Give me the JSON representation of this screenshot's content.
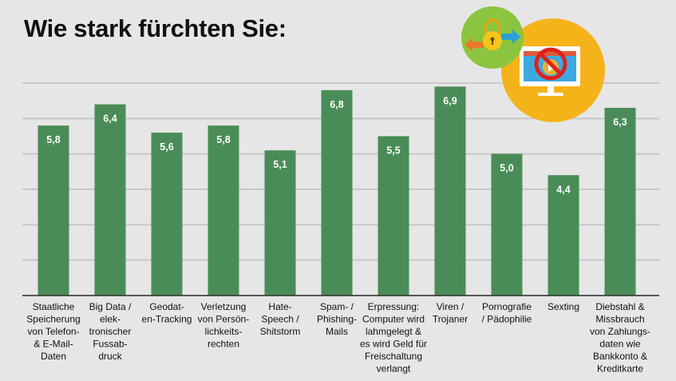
{
  "chart_data": {
    "type": "bar",
    "title": "Wie stark fürchten Sie:",
    "categories": [
      [
        "Staatliche",
        "Speicherung",
        "von Telefon-",
        "& E-Mail-",
        "Daten"
      ],
      [
        "Big Data /",
        "elek-",
        "tronischer",
        "Fussab-",
        "druck"
      ],
      [
        "Geodat-",
        "en-Tracking"
      ],
      [
        "Verletzung",
        "von Persön-",
        "lichkeits-",
        "rechten"
      ],
      [
        "Hate-",
        "Speech /",
        "Shitstorm"
      ],
      [
        "Spam- /",
        "Phishing-",
        "Mails"
      ],
      [
        "Erpressung:",
        "Computer wird",
        "lahmgelegt &",
        "es wird Geld für",
        "Freischaltung",
        "verlangt"
      ],
      [
        "Viren /",
        "Trojaner"
      ],
      [
        "Pornografie",
        "/ Pädophilie"
      ],
      [
        "Sexting"
      ],
      [
        "Diebstahl &",
        "Missbrauch",
        "von Zahlungs-",
        "daten wie",
        "Bankkonto &",
        "Kreditkarte"
      ]
    ],
    "values": [
      5.8,
      6.4,
      5.6,
      5.8,
      5.1,
      6.8,
      5.5,
      6.9,
      5.0,
      4.4,
      6.3
    ],
    "value_labels": [
      "5,8",
      "6,4",
      "5,6",
      "5,8",
      "5,1",
      "6,8",
      "5,5",
      "6,9",
      "5,0",
      "4,4",
      "6,3"
    ],
    "ylim": [
      1,
      7
    ],
    "grid": true,
    "xlabel": "",
    "ylabel": ""
  },
  "colors": {
    "background": "#e6e6e6",
    "bar": "#4a8c57",
    "value_label": "#ffffff",
    "gridline": "#c8c8c8",
    "axis": "#333333",
    "lock_circle": "#8bc53f",
    "screen_circle": "#f5b31a",
    "no_sign": "#e0201b",
    "lock": "#f5c518",
    "arrow_blue": "#2a9fd8",
    "arrow_orange": "#e87a2a"
  },
  "illustration": {
    "icons": [
      "lock-icon",
      "exchange-arrows-icon",
      "monitor-icon",
      "no-entry-icon",
      "play-icon"
    ]
  }
}
